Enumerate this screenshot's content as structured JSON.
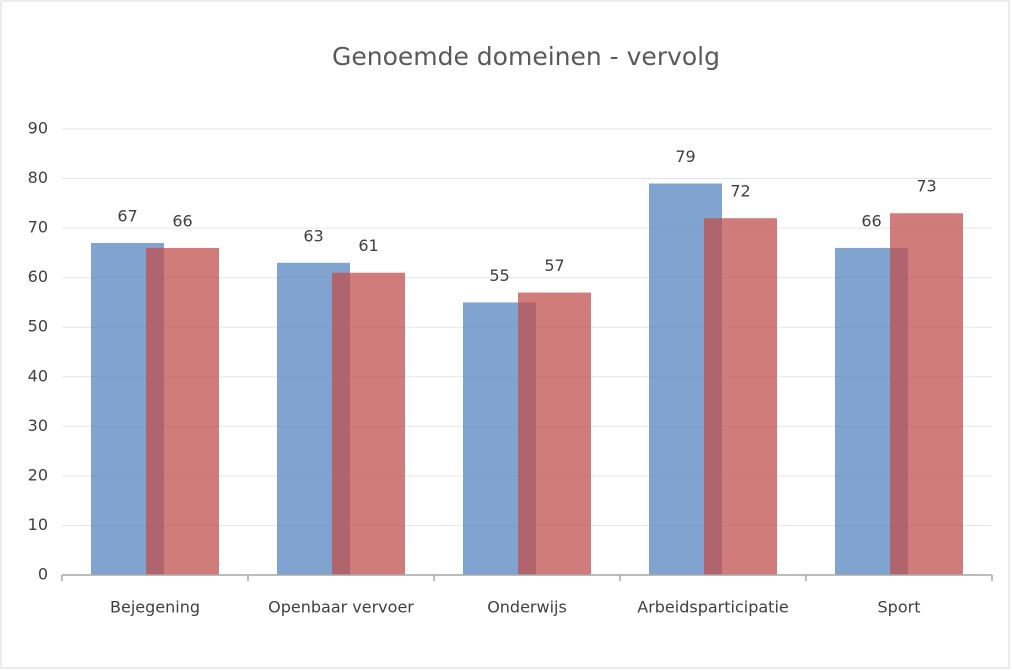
{
  "chart_data": {
    "type": "bar",
    "title": "Genoemde domeinen - vervolg",
    "categories": [
      "Bejegening",
      "Openbaar vervoer",
      "Onderwijs",
      "Arbeidsparticipatie",
      "Sport"
    ],
    "series": [
      {
        "color": "#4f81bd",
        "values": [
          67,
          63,
          55,
          79,
          66
        ]
      },
      {
        "color": "#c0504d",
        "values": [
          66,
          61,
          57,
          72,
          73
        ]
      }
    ],
    "ylim": [
      0,
      90
    ],
    "yticks": [
      0,
      10,
      20,
      30,
      40,
      50,
      60,
      70,
      80,
      90
    ],
    "grid": true
  }
}
